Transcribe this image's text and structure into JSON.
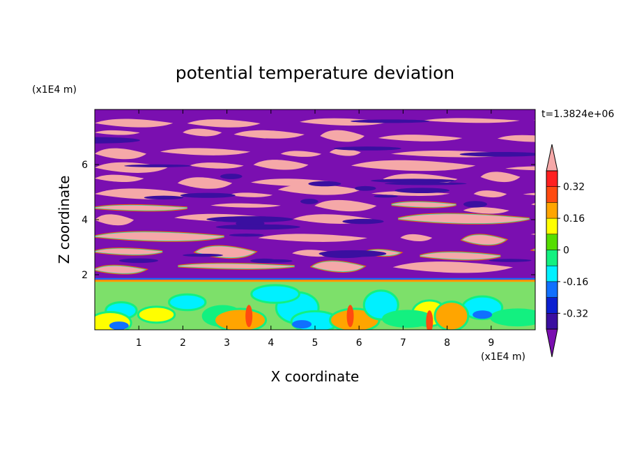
{
  "chart_data": {
    "type": "heatmap",
    "title": "potential temperature deviation",
    "xlabel": "X coordinate",
    "ylabel": "Z coordinate",
    "x_unit": "(x1E4 m)",
    "y_unit": "(x1E4 m)",
    "time_label": "t=1.3824e+06",
    "xlim": [
      0,
      10
    ],
    "ylim": [
      0,
      8
    ],
    "x_ticks": [
      "1",
      "2",
      "3",
      "4",
      "5",
      "6",
      "7",
      "8",
      "9"
    ],
    "y_ticks": [
      "2",
      "4",
      "6"
    ],
    "x_tick_values": [
      1,
      2,
      3,
      4,
      5,
      6,
      7,
      8,
      9
    ],
    "y_tick_values": [
      2,
      4,
      6
    ],
    "colorbar": {
      "labels": [
        "0.32",
        "0.16",
        "0",
        "-0.16",
        "-0.32"
      ],
      "label_values": [
        0.32,
        0.16,
        0,
        -0.16,
        -0.32
      ],
      "levels": [
        -0.4,
        -0.32,
        -0.24,
        -0.16,
        -0.08,
        0,
        0.08,
        0.16,
        0.24,
        0.32,
        0.4
      ],
      "colors": [
        "#7a0fb0",
        "#3a0fa0",
        "#0b1fd0",
        "#1070ff",
        "#00f0ff",
        "#13f080",
        "#55dd00",
        "#fffe00",
        "#ffa500",
        "#ff4a10",
        "#ff2020",
        "#f5a8a8"
      ],
      "extend": "both"
    },
    "background_colors": {
      "low": "#7a0fb0",
      "high": "#f5a8a8",
      "boundary_layer": "#7de06a"
    }
  }
}
